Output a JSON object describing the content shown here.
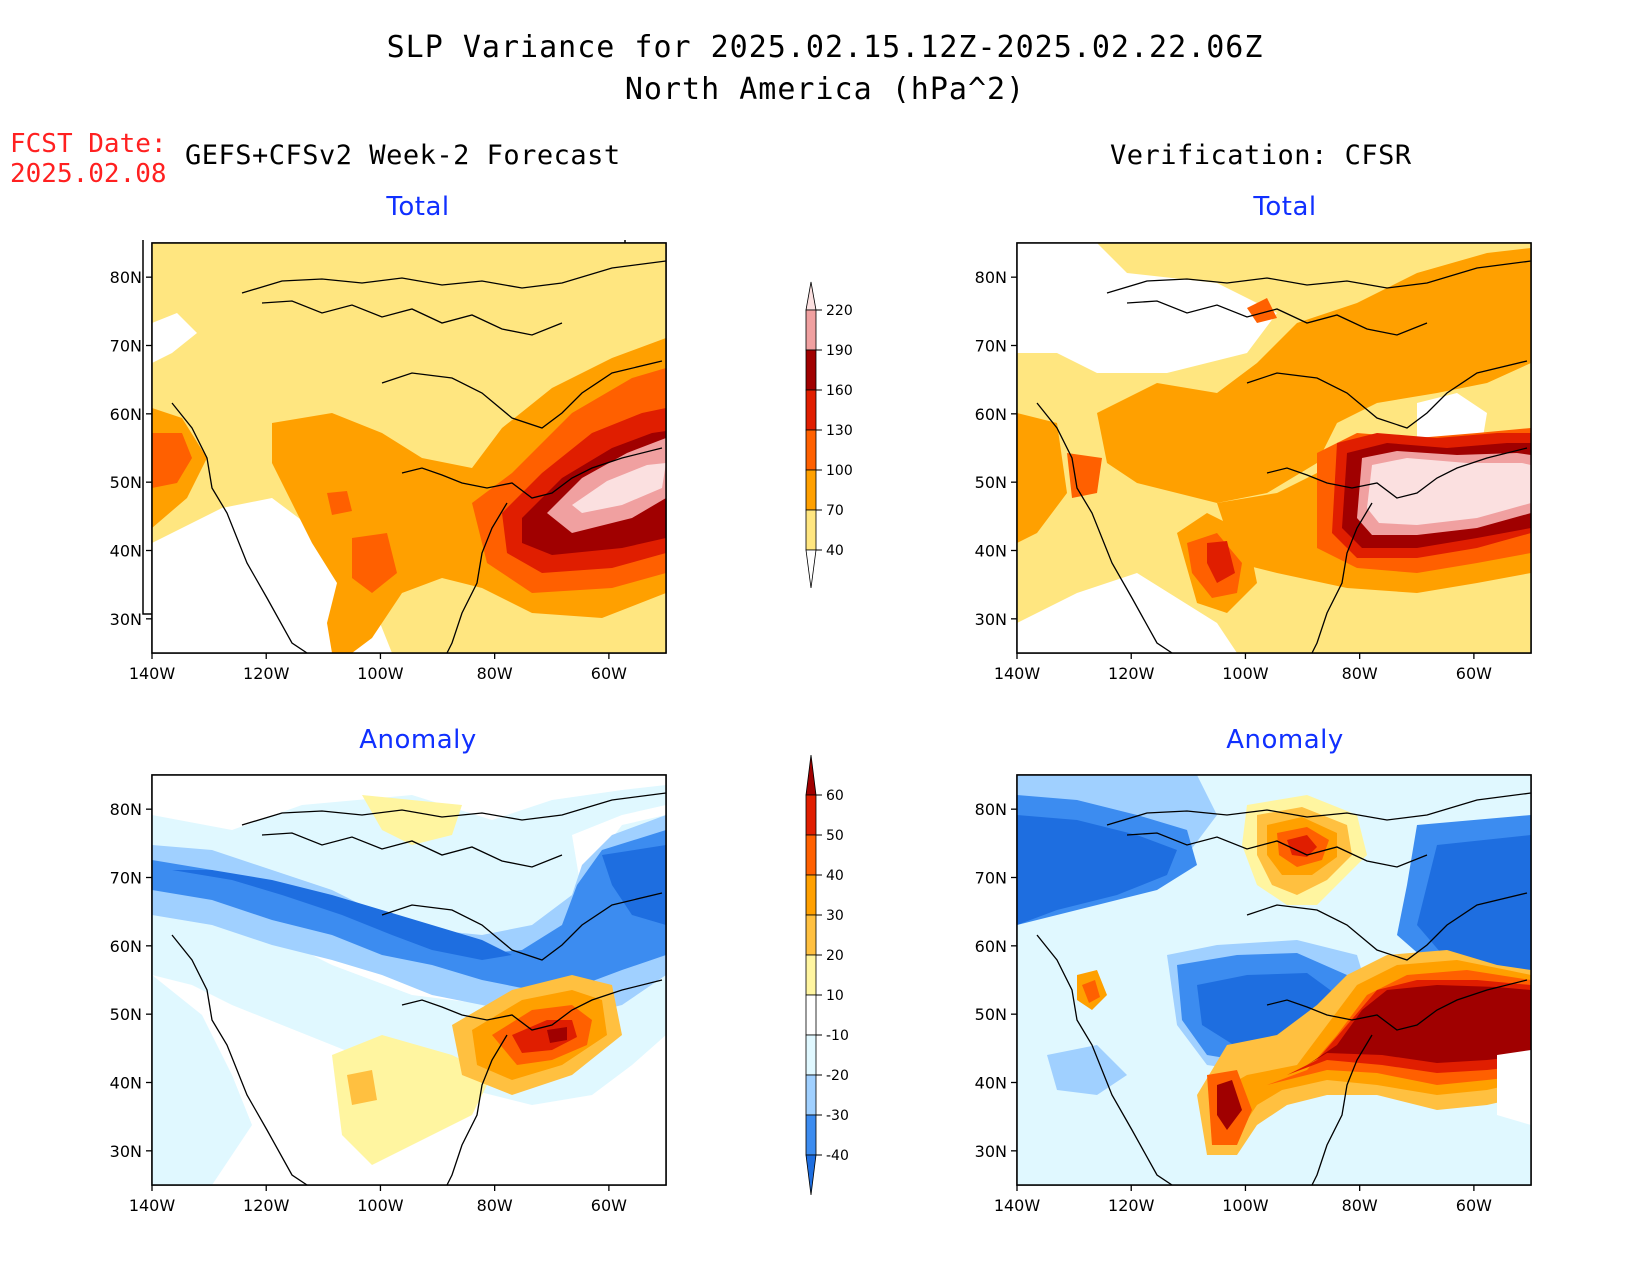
{
  "header": {
    "title": "SLP Variance for 2025.02.15.12Z-2025.02.22.06Z",
    "subtitle": "North America (hPa^2)",
    "fcst_label": "FCST Date:",
    "fcst_date": "2025.02.08",
    "left_column": "GEFS+CFSv2 Week-2 Forecast",
    "right_column": "Verification: CFSR"
  },
  "panels": {
    "top_left": {
      "title": "Total"
    },
    "top_right": {
      "title": "Total"
    },
    "bottom_left": {
      "title": "Anomaly"
    },
    "bottom_right": {
      "title": "Anomaly"
    }
  },
  "axes": {
    "lon_labels": [
      "140W",
      "120W",
      "100W",
      "80W",
      "60W"
    ],
    "lat_labels": [
      "80N",
      "70N",
      "60N",
      "50N",
      "40N",
      "30N"
    ],
    "lon_range": [
      -140,
      -50
    ],
    "lat_range": [
      25,
      85
    ]
  },
  "colorbars": {
    "total": {
      "levels": [
        "40",
        "70",
        "100",
        "130",
        "160",
        "190",
        "220"
      ],
      "colors": [
        "#ffe680",
        "#ffa000",
        "#ff6000",
        "#e01e00",
        "#a00000",
        "#f0a0a0",
        "#fbe0e0"
      ]
    },
    "anomaly": {
      "levels": [
        "-40",
        "-30",
        "-20",
        "-10",
        "10",
        "20",
        "30",
        "40",
        "50",
        "60"
      ],
      "colors": [
        "#1e6ee0",
        "#3c8cf0",
        "#a0d0ff",
        "#e0f8ff",
        "#ffffff",
        "#fff5a0",
        "#ffc040",
        "#ffa000",
        "#ff6000",
        "#e01e00",
        "#a00000"
      ]
    }
  },
  "colors": {
    "title_blue": "#1030ff",
    "fcst_red": "#ff2020"
  }
}
